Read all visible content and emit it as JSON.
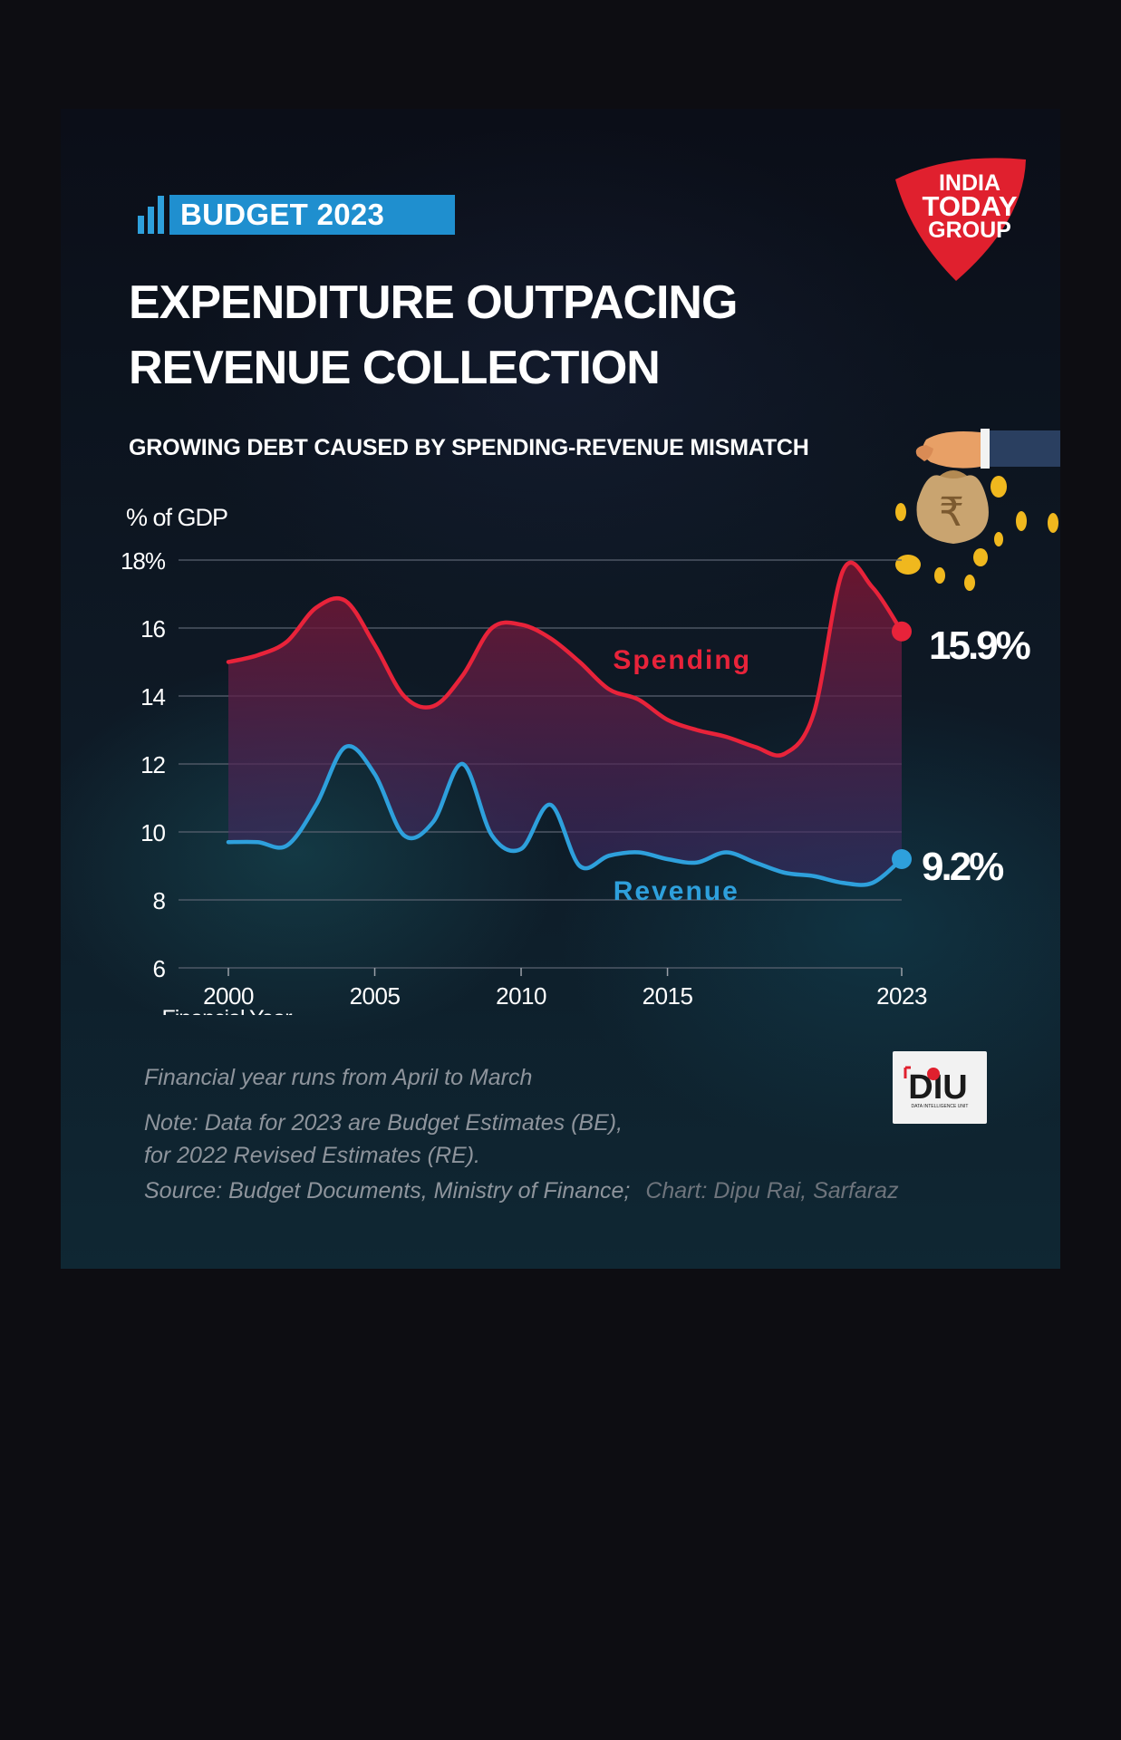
{
  "badge": {
    "label": "BUDGET 2023"
  },
  "title_lines": [
    "EXPENDITURE OUTPACING",
    "REVENUE COLLECTION"
  ],
  "subtitle": "GROWING DEBT CAUSED BY SPENDING-REVENUE MISMATCH",
  "brand": {
    "lines": [
      "INDIA",
      "TODAY",
      "GROUP"
    ],
    "color": "#e0202e"
  },
  "diu_logo": {
    "text": "DIU",
    "tagline": "DATA INTELLIGENCE UNIT"
  },
  "colors": {
    "spending": "#e8233a",
    "revenue": "#2ea0dc",
    "badge": "#1f8fcf"
  },
  "notes": {
    "line1": "Financial year runs from April to March",
    "line2": "Note: Data for 2023 are Budget Estimates (BE),",
    "line3": "for 2022 Revised Estimates (RE).",
    "source": "Source: Budget Documents, Ministry of Finance;",
    "credit": "Chart: Dipu Rai, Sarfaraz"
  },
  "chart_data": {
    "type": "line",
    "ylabel": "% of GDP",
    "xlabel": "Financial Year",
    "ylim": [
      6,
      18
    ],
    "xlim": [
      2000,
      2023
    ],
    "y_ticks": [
      "18%",
      "16",
      "14",
      "12",
      "10",
      "8",
      "6"
    ],
    "y_tick_values": [
      18,
      16,
      14,
      12,
      10,
      8,
      6
    ],
    "x_ticks": [
      "2000",
      "2005",
      "2010",
      "2015",
      "2023"
    ],
    "x_tick_values": [
      2000,
      2005,
      2010,
      2015,
      2023
    ],
    "grid": true,
    "x": [
      2000,
      2001,
      2002,
      2003,
      2004,
      2005,
      2006,
      2007,
      2008,
      2009,
      2010,
      2011,
      2012,
      2013,
      2014,
      2015,
      2016,
      2017,
      2018,
      2019,
      2020,
      2021,
      2022,
      2023
    ],
    "series": [
      {
        "name": "Spending",
        "end_label": "15.9%",
        "values": [
          15.0,
          15.2,
          15.6,
          16.6,
          16.8,
          15.5,
          14.0,
          13.7,
          14.6,
          16.0,
          16.1,
          15.7,
          15.0,
          14.2,
          13.9,
          13.3,
          13.0,
          12.8,
          12.5,
          12.3,
          13.5,
          17.7,
          17.2,
          15.9
        ]
      },
      {
        "name": "Revenue",
        "end_label": "9.2%",
        "values": [
          9.7,
          9.7,
          9.6,
          10.8,
          12.5,
          11.7,
          9.9,
          10.3,
          12.0,
          9.9,
          9.5,
          10.8,
          9.0,
          9.3,
          9.4,
          9.2,
          9.1,
          9.4,
          9.1,
          8.8,
          8.7,
          8.5,
          8.5,
          9.2
        ]
      }
    ]
  }
}
